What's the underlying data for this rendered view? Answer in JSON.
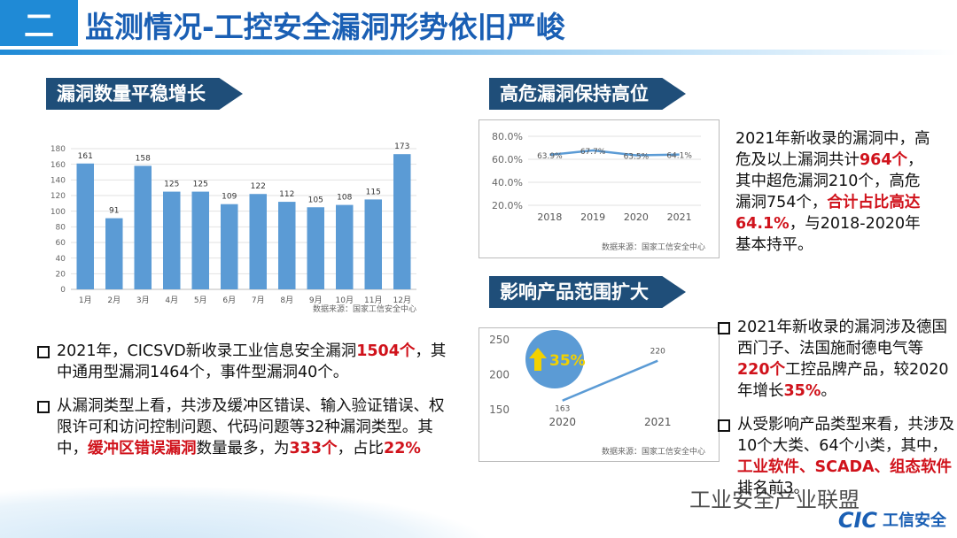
{
  "header": {
    "badge": "二",
    "title": "监测情况-工控安全漏洞形势依旧严峻"
  },
  "chart_data": [
    {
      "type": "bar",
      "title": "漏洞数量平稳增长",
      "categories": [
        "1月",
        "2月",
        "3月",
        "4月",
        "5月",
        "6月",
        "7月",
        "8月",
        "9月",
        "10月",
        "11月",
        "12月"
      ],
      "values": [
        161,
        91,
        158,
        125,
        125,
        109,
        122,
        112,
        105,
        108,
        115,
        173
      ],
      "color": "#5b9bd5",
      "ylim": [
        0,
        180
      ],
      "yticks": [
        0,
        20,
        40,
        60,
        80,
        100,
        120,
        140,
        160,
        180
      ],
      "grid": true,
      "source": "数据来源：国家工信安全中心"
    },
    {
      "type": "line",
      "title": "高危漏洞保持高位",
      "categories": [
        "2018",
        "2019",
        "2020",
        "2021"
      ],
      "values": [
        63.9,
        67.7,
        63.5,
        64.1
      ],
      "value_labels": [
        "63.9%",
        "67.7%",
        "63.5%",
        "64.1%"
      ],
      "color": "#5b9bd5",
      "ylim": [
        20,
        80
      ],
      "yticks": [
        {
          "value": 20,
          "label": "20.0%"
        },
        {
          "value": 40,
          "label": "40.0%"
        },
        {
          "value": 60,
          "label": "60.0%"
        },
        {
          "value": 80,
          "label": "80.0%"
        }
      ],
      "grid": true,
      "source": "数据来源：国家工信安全中心"
    },
    {
      "type": "line",
      "title": "影响产品范围扩大",
      "categories": [
        "2020",
        "2021"
      ],
      "values": [
        163,
        220
      ],
      "color": "#5b9bd5",
      "ylim": [
        150,
        250
      ],
      "yticks": [
        150,
        200,
        250
      ],
      "grid": false,
      "annotation": "35%",
      "source": "数据来源：国家工信安全中心"
    }
  ],
  "paragraphs": {
    "high_risk": [
      {
        "text": "2021年新收录的漏洞中，高危及以上漏洞共计",
        "emphasis": false
      },
      {
        "text": "964个",
        "emphasis": true
      },
      {
        "text": "，其中超危漏洞210个，高危漏洞754个，",
        "emphasis": false
      },
      {
        "text": "合计占比高达64.1%",
        "emphasis": true
      },
      {
        "text": "，与2018-2020年基本持平。",
        "emphasis": false
      }
    ],
    "left_bullets": [
      [
        {
          "text": "2021年，CICSVD新收录工业信息安全漏洞",
          "emphasis": false
        },
        {
          "text": "1504个",
          "emphasis": true
        },
        {
          "text": "，其中通用型漏洞1464个，事件型漏洞40个。",
          "emphasis": false
        }
      ],
      [
        {
          "text": "从漏洞类型上看，共涉及缓冲区错误、输入验证错误、权限许可和访问控制问题、代码问题等32种漏洞类型。其中，",
          "emphasis": false
        },
        {
          "text": "缓冲区错误漏洞",
          "emphasis": true
        },
        {
          "text": "数量最多，为",
          "emphasis": false
        },
        {
          "text": "333个",
          "emphasis": true
        },
        {
          "text": "，占比",
          "emphasis": false
        },
        {
          "text": "22%",
          "emphasis": true
        }
      ]
    ],
    "right_bullets": [
      [
        {
          "text": "2021年新收录的漏洞涉及德国西门子、法国施耐德电气等",
          "emphasis": false
        },
        {
          "text": "220个",
          "emphasis": true
        },
        {
          "text": "工控品牌产品，较2020年增长",
          "emphasis": false
        },
        {
          "text": "35%",
          "emphasis": true
        },
        {
          "text": "。",
          "emphasis": false
        }
      ],
      [
        {
          "text": "从受影响产品类型来看，共涉及10个大类、64个小类，其中，",
          "emphasis": false
        },
        {
          "text": "工业软件、SCADA、组态软件",
          "emphasis": true
        },
        {
          "text": "排名前3。",
          "emphasis": false
        }
      ]
    ]
  },
  "footer": {
    "watermark": "工业安全产业联盟",
    "logo": "CIC",
    "logo_text": "工信安全"
  }
}
